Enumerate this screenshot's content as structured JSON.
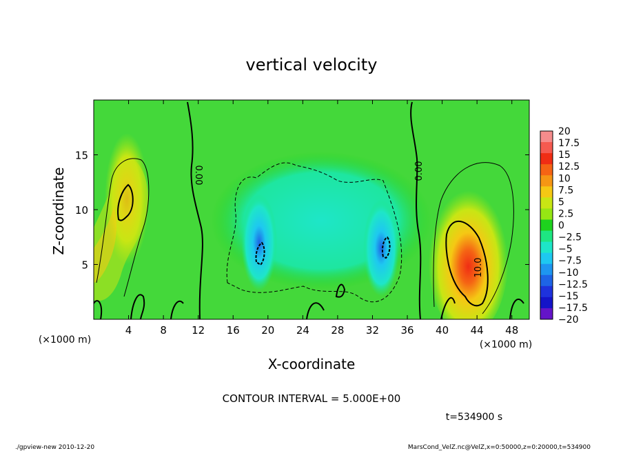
{
  "chart_data": {
    "type": "heatmap",
    "title": "vertical velocity",
    "xlabel": "X-coordinate",
    "ylabel": "Z-coordinate",
    "x_unit_left": "(×1000 m)",
    "x_unit_right": "(×1000 m)",
    "xlim": [
      0,
      50
    ],
    "ylim": [
      0,
      20
    ],
    "x_ticks": [
      "4",
      "8",
      "12",
      "16",
      "20",
      "24",
      "28",
      "32",
      "36",
      "40",
      "44",
      "48"
    ],
    "x_tick_values": [
      4,
      8,
      12,
      16,
      20,
      24,
      28,
      32,
      36,
      40,
      44,
      48
    ],
    "y_ticks": [
      "5",
      "10",
      "15"
    ],
    "y_tick_values": [
      5,
      10,
      15
    ],
    "contour_interval_text": "CONTOUR INTERVAL = 5.000E+00",
    "time_text": "t=534900 s",
    "contour_labels": [
      "0.00",
      "0.00",
      "10.0"
    ],
    "colorbar": {
      "labels": [
        "20",
        "17.5",
        "15",
        "12.5",
        "10",
        "7.5",
        "5",
        "2.5",
        "0",
        "−2.5",
        "−5",
        "−7.5",
        "−10",
        "−12.5",
        "−15",
        "−17.5",
        "−20"
      ],
      "values": [
        20,
        17.5,
        15,
        12.5,
        10,
        7.5,
        5,
        2.5,
        0,
        -2.5,
        -5,
        -7.5,
        -10,
        -12.5,
        -15,
        -17.5,
        -20
      ],
      "colors": [
        "#f58c8c",
        "#f55a50",
        "#f02d14",
        "#f56414",
        "#f59614",
        "#f5c814",
        "#c8e614",
        "#96e614",
        "#1ed21e",
        "#1ee682",
        "#1ee6c8",
        "#1ec8f0",
        "#1e96f0",
        "#1e64e6",
        "#1e32dc",
        "#1414c8",
        "#6414c8"
      ]
    },
    "features": [
      {
        "x": 3.8,
        "z": 11,
        "w": 11,
        "sign": "positive"
      },
      {
        "x": 43,
        "z": 5.5,
        "w": 14,
        "sign": "positive"
      },
      {
        "x": 19,
        "z": 7,
        "w": -8,
        "sign": "negative"
      },
      {
        "x": 33,
        "z": 6.5,
        "w": -8,
        "sign": "negative"
      }
    ]
  },
  "footer": {
    "left": "./gpview-new   2010-12-20",
    "right": "MarsCond_VelZ.nc@VelZ,x=0:50000,z=0:20000,t=534900"
  }
}
